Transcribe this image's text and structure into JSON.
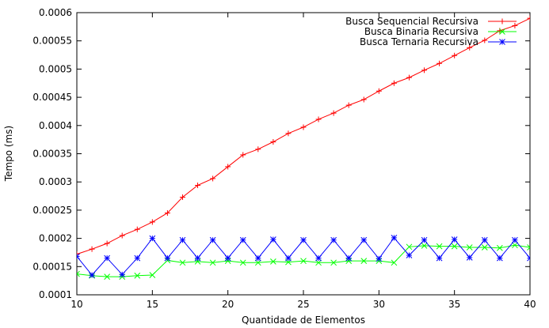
{
  "chart_data": {
    "type": "line",
    "title": "",
    "xlabel": "Quantidade de Elementos",
    "ylabel": "Tempo (ms)",
    "xlim": [
      10,
      40
    ],
    "ylim": [
      0.0001,
      0.0006
    ],
    "xticks": [
      10,
      15,
      20,
      25,
      30,
      35,
      40
    ],
    "yticks": [
      0.0001,
      0.00015,
      0.0002,
      0.00025,
      0.0003,
      0.00035,
      0.0004,
      0.00045,
      0.0005,
      0.00055,
      0.0006
    ],
    "xtick_labels": [
      "10",
      "15",
      "20",
      "25",
      "30",
      "35",
      "40"
    ],
    "ytick_labels": [
      "0.0001",
      "0.00015",
      "0.0002",
      "0.00025",
      "0.0003",
      "0.00035",
      "0.0004",
      "0.00045",
      "0.0005",
      "0.00055",
      "0.0006"
    ],
    "grid": false,
    "legend_position": "top-right",
    "x": [
      10,
      11,
      12,
      13,
      14,
      15,
      16,
      17,
      18,
      19,
      20,
      21,
      22,
      23,
      24,
      25,
      26,
      27,
      28,
      29,
      30,
      31,
      32,
      33,
      34,
      35,
      36,
      37,
      38,
      39,
      40
    ],
    "series": [
      {
        "name": "Busca Sequencial Recursiva",
        "color": "#ff0000",
        "marker": "plus",
        "values": [
          0.000172,
          0.000181,
          0.000191,
          0.000205,
          0.000216,
          0.000229,
          0.000245,
          0.000273,
          0.000294,
          0.000306,
          0.000327,
          0.000348,
          0.000358,
          0.000371,
          0.000386,
          0.000397,
          0.000411,
          0.000422,
          0.000436,
          0.000446,
          0.000461,
          0.000475,
          0.000485,
          0.000498,
          0.00051,
          0.000524,
          0.000538,
          0.000551,
          0.000568,
          0.000577,
          0.00059
        ]
      },
      {
        "name": "Busca Binaria Recursiva",
        "color": "#00ff00",
        "marker": "x",
        "values": [
          0.000137,
          0.000134,
          0.000132,
          0.000132,
          0.000134,
          0.000135,
          0.000161,
          0.000157,
          0.000159,
          0.000157,
          0.00016,
          0.000157,
          0.000157,
          0.000159,
          0.000158,
          0.00016,
          0.000157,
          0.000157,
          0.00016,
          0.00016,
          0.00016,
          0.000157,
          0.000185,
          0.000187,
          0.000186,
          0.000186,
          0.000184,
          0.000184,
          0.000183,
          0.000188,
          0.000184
        ]
      },
      {
        "name": "Busca Ternaria Recursiva",
        "color": "#0000ff",
        "marker": "star",
        "values": [
          0.000168,
          0.000135,
          0.000165,
          0.000136,
          0.000165,
          0.0002,
          0.000165,
          0.000197,
          0.000165,
          0.000197,
          0.000165,
          0.000197,
          0.000165,
          0.000198,
          0.000165,
          0.000197,
          0.000165,
          0.000197,
          0.000165,
          0.000197,
          0.000164,
          0.000201,
          0.00017,
          0.000197,
          0.000165,
          0.000198,
          0.000166,
          0.000197,
          0.000165,
          0.000197,
          0.000165
        ]
      }
    ]
  }
}
